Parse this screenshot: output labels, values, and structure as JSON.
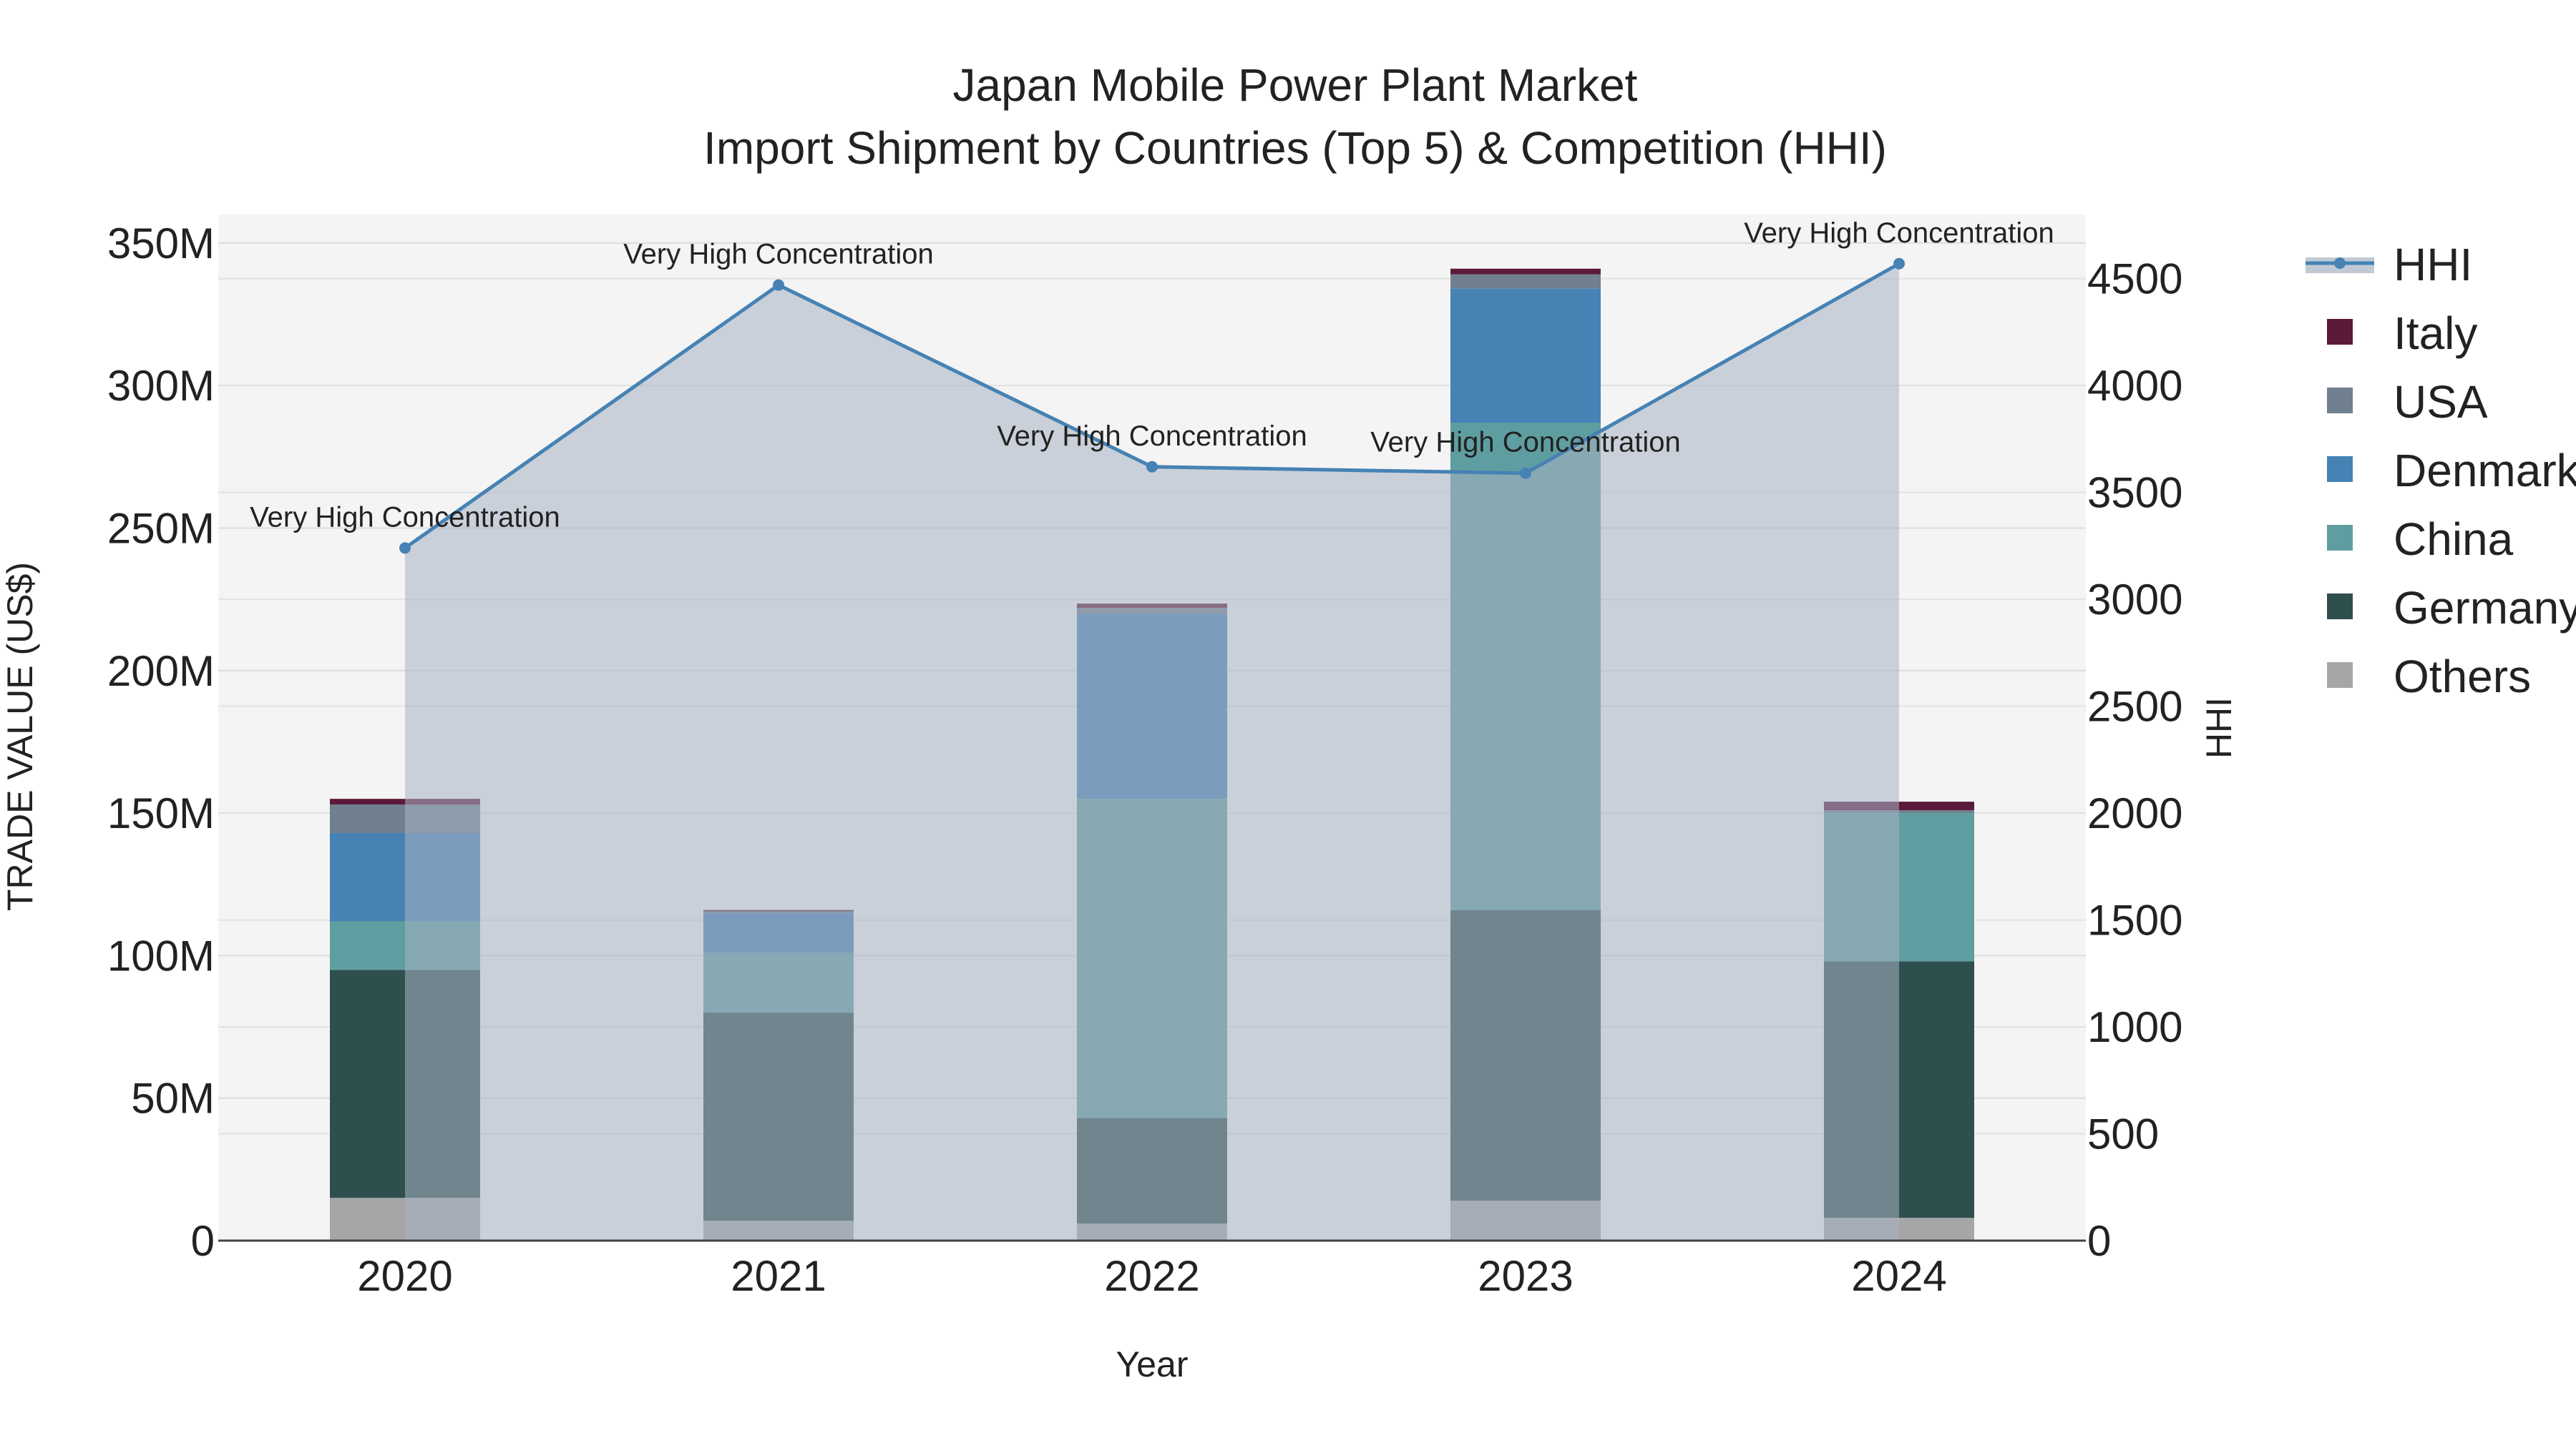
{
  "chart_data": {
    "type": "bar",
    "title": "Japan Mobile Power Plant Market",
    "subtitle": "Import Shipment by Countries (Top 5) & Competition (HHI)",
    "xlabel": "Year",
    "ylabel": "TRADE VALUE (US$)",
    "y2label": "HHI",
    "categories": [
      "2020",
      "2021",
      "2022",
      "2023",
      "2024"
    ],
    "ylim": [
      0,
      360000000
    ],
    "y2lim": [
      0,
      4800
    ],
    "yticks": [
      {
        "value": 0,
        "label": "0"
      },
      {
        "value": 50000000,
        "label": "50M"
      },
      {
        "value": 100000000,
        "label": "100M"
      },
      {
        "value": 150000000,
        "label": "150M"
      },
      {
        "value": 200000000,
        "label": "200M"
      },
      {
        "value": 250000000,
        "label": "250M"
      },
      {
        "value": 300000000,
        "label": "300M"
      },
      {
        "value": 350000000,
        "label": "350M"
      }
    ],
    "y2ticks": [
      {
        "value": 0,
        "label": "0"
      },
      {
        "value": 500,
        "label": "500"
      },
      {
        "value": 1000,
        "label": "1000"
      },
      {
        "value": 1500,
        "label": "1500"
      },
      {
        "value": 2000,
        "label": "2000"
      },
      {
        "value": 2500,
        "label": "2500"
      },
      {
        "value": 3000,
        "label": "3000"
      },
      {
        "value": 3500,
        "label": "3500"
      },
      {
        "value": 4000,
        "label": "4000"
      },
      {
        "value": 4500,
        "label": "4500"
      }
    ],
    "series": [
      {
        "name": "Others",
        "color": "#a6a6a6",
        "values": [
          15000000,
          7000000,
          6000000,
          14000000,
          8000000
        ]
      },
      {
        "name": "Germany",
        "color": "#2f4f4f",
        "values": [
          80000000,
          73000000,
          37000000,
          102000000,
          90000000
        ]
      },
      {
        "name": "China",
        "color": "#5f9ea0",
        "values": [
          17000000,
          21000000,
          112000000,
          171000000,
          52000000
        ]
      },
      {
        "name": "Denmark",
        "color": "#4682b4",
        "values": [
          31000000,
          14000000,
          65000000,
          47000000,
          0
        ]
      },
      {
        "name": "USA",
        "color": "#708090",
        "values": [
          10000000,
          500000,
          2000000,
          5000000,
          1000000
        ]
      },
      {
        "name": "Italy",
        "color": "#5c1a3a",
        "values": [
          2000000,
          500000,
          1500000,
          2000000,
          3000000
        ]
      }
    ],
    "hhi": {
      "name": "HHI",
      "color": "#4682b4",
      "values": [
        3240,
        4470,
        3620,
        3590,
        4570
      ],
      "annotations": [
        "Very High Concentration",
        "Very High Concentration",
        "Very High Concentration",
        "Very High Concentration",
        "Very High Concentration"
      ]
    },
    "legend": {
      "position": "right",
      "order": [
        "HHI",
        "Italy",
        "USA",
        "Denmark",
        "China",
        "Germany",
        "Others"
      ]
    }
  }
}
